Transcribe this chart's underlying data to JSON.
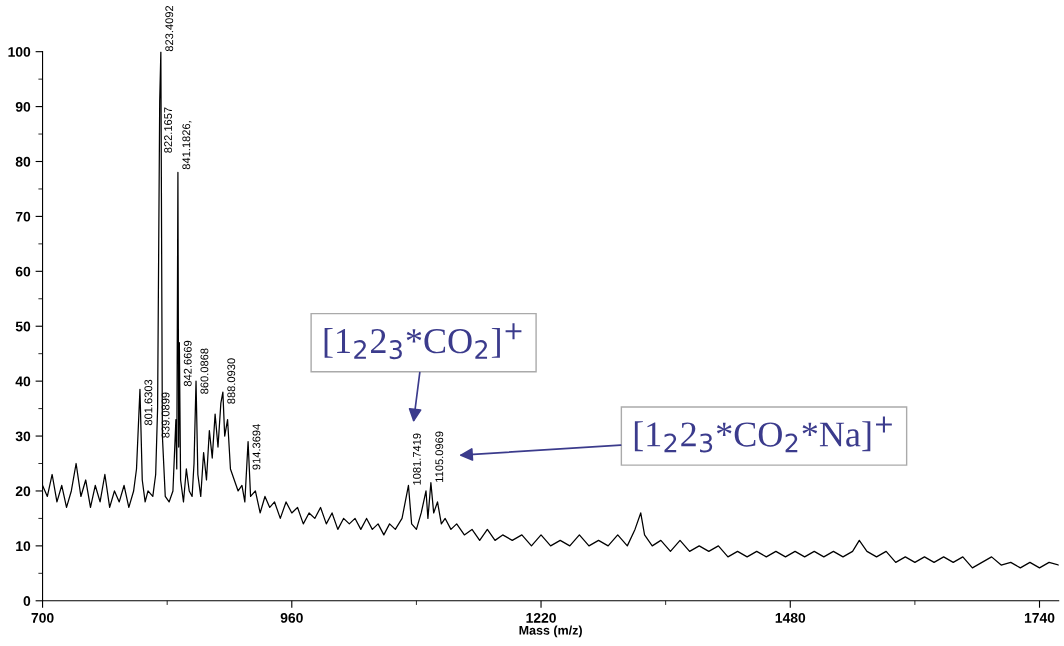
{
  "chart_data": {
    "type": "line",
    "xlabel": "Mass (m/z)",
    "xlim": [
      700,
      1760
    ],
    "xticks": [
      700,
      960,
      1220,
      1480,
      1740
    ],
    "ylim": [
      0,
      100
    ],
    "yticks": [
      0,
      10,
      20,
      30,
      40,
      50,
      60,
      70,
      80,
      90,
      100
    ],
    "grid": false,
    "legend": false,
    "marker": "none",
    "line_style": "solid",
    "series": [
      {
        "color": "#000000",
        "x": [
          700,
          705,
          710,
          715,
          720,
          725,
          730,
          735,
          740,
          745,
          750,
          755,
          760,
          765,
          770,
          775,
          780,
          785,
          790,
          795,
          798,
          801.6,
          804,
          807,
          810,
          815,
          818,
          820,
          822.2,
          823.4,
          825,
          828,
          832,
          836,
          839.1,
          840,
          841.2,
          842,
          842.7,
          844,
          847,
          850,
          853,
          856,
          858,
          860.1,
          862,
          865,
          868,
          871,
          874,
          877,
          880,
          883,
          886,
          888.1,
          890,
          893,
          896,
          900,
          904,
          908,
          911,
          914.4,
          917,
          922,
          927,
          932,
          937,
          942,
          948,
          954,
          960,
          966,
          972,
          978,
          984,
          990,
          996,
          1002,
          1008,
          1014,
          1020,
          1026,
          1032,
          1038,
          1044,
          1050,
          1056,
          1062,
          1068,
          1075,
          1081.7,
          1085,
          1090,
          1095,
          1100,
          1102,
          1105.1,
          1108,
          1112,
          1116,
          1120,
          1126,
          1132,
          1140,
          1148,
          1156,
          1164,
          1172,
          1180,
          1190,
          1200,
          1210,
          1220,
          1230,
          1240,
          1250,
          1260,
          1270,
          1280,
          1290,
          1300,
          1310,
          1318,
          1324,
          1328,
          1336,
          1345,
          1355,
          1365,
          1375,
          1385,
          1395,
          1405,
          1415,
          1425,
          1435,
          1445,
          1455,
          1465,
          1475,
          1485,
          1495,
          1505,
          1515,
          1525,
          1535,
          1545,
          1552,
          1560,
          1570,
          1580,
          1590,
          1600,
          1610,
          1620,
          1630,
          1640,
          1650,
          1660,
          1670,
          1680,
          1690,
          1700,
          1710,
          1720,
          1730,
          1740,
          1750,
          1760
        ],
        "values": [
          21,
          19,
          23,
          18,
          21,
          17,
          20,
          25,
          19,
          22,
          17,
          21,
          18,
          23,
          17,
          20,
          18,
          21,
          17,
          20,
          24,
          38.5,
          22,
          18,
          20,
          19,
          23,
          35,
          91,
          100,
          30,
          19,
          18,
          20,
          33,
          24,
          78,
          28,
          47,
          22,
          18,
          24,
          20,
          19,
          25,
          40,
          23,
          19,
          27,
          22,
          31,
          26,
          34,
          28,
          36,
          38,
          30,
          33,
          24,
          22,
          20,
          21,
          18,
          29,
          19,
          20,
          16,
          19,
          17,
          18,
          15,
          18,
          16,
          17,
          14,
          16,
          15,
          17,
          14,
          16,
          13,
          15,
          14,
          15,
          13,
          15,
          13,
          14,
          12,
          14,
          13,
          15,
          21,
          14,
          13,
          16,
          20,
          15,
          21.5,
          16,
          18,
          14,
          15,
          13,
          14,
          12,
          13,
          11,
          13,
          11,
          12,
          11,
          12,
          10,
          12,
          10,
          11,
          10,
          12,
          10,
          11,
          10,
          12,
          10,
          13,
          16,
          12,
          10,
          11,
          9,
          11,
          9,
          10,
          9,
          10,
          8,
          9,
          8,
          9,
          8,
          9,
          8,
          9,
          8,
          9,
          8,
          9,
          8,
          9,
          11,
          9,
          8,
          9,
          7,
          8,
          7,
          8,
          7,
          8,
          7,
          8,
          6,
          7,
          8,
          6.5,
          7,
          6,
          7,
          6,
          7,
          6.5
        ]
      }
    ],
    "annotations": [
      {
        "text": "801.6303",
        "x": 801.6303,
        "y": 31.9
      },
      {
        "text": "823.4092",
        "x": 823.4092,
        "y": 100
      },
      {
        "text": "822.1657",
        "x": 822.1657,
        "y": 81.5
      },
      {
        "text": "841.1826,",
        "x": 841.1826,
        "y": 78.5
      },
      {
        "text": "839.0899",
        "x": 839.0899,
        "y": 29.6
      },
      {
        "text": "842.6669",
        "x": 842.6669,
        "y": 39
      },
      {
        "text": "860.0868",
        "x": 860.0868,
        "y": 37.6
      },
      {
        "text": "888.0930",
        "x": 888.093,
        "y": 35.8
      },
      {
        "text": "914.3694",
        "x": 914.3694,
        "y": 23.8
      },
      {
        "text": "1081.7419",
        "x": 1081.7419,
        "y": 21
      },
      {
        "text": "1105.0969",
        "x": 1105.0969,
        "y": 21.5
      },
      "[1$_{2}$2$_{3}$*CO$_{2}$]$^{+}$",
      "[1$_{2}$2$_{3}$*CO$_{2}$*Na]$^{+}$"
    ]
  }
}
